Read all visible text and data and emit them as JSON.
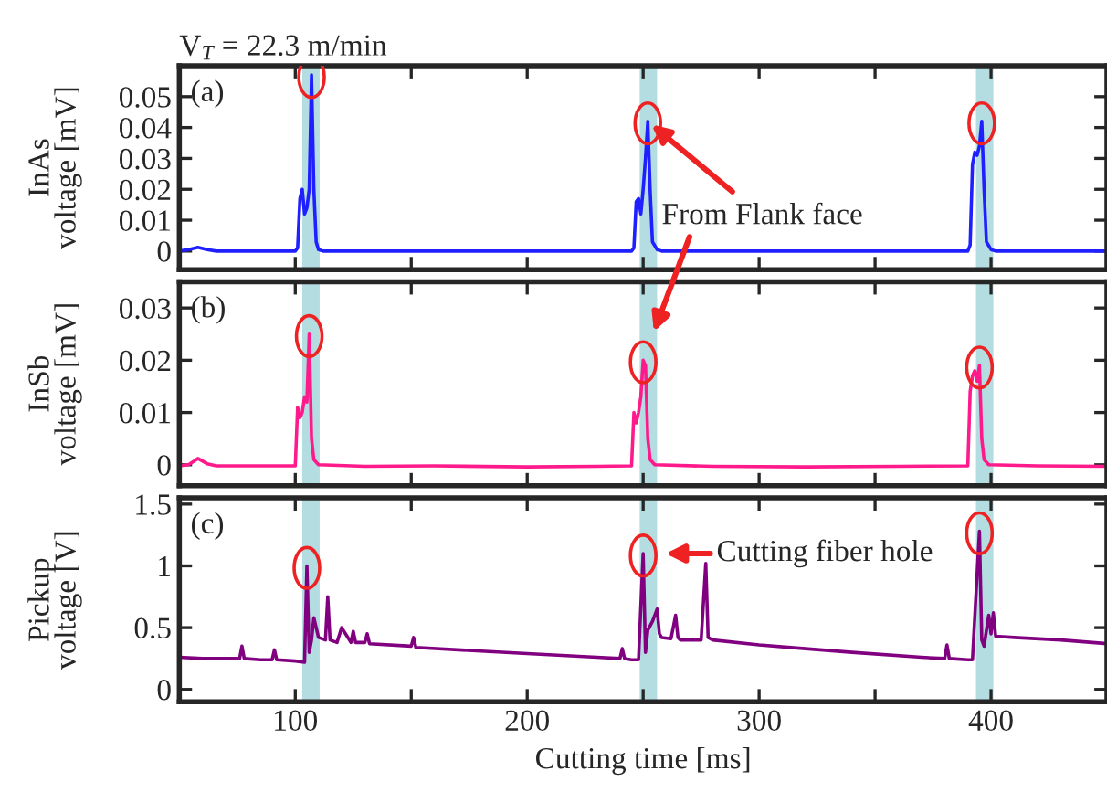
{
  "chart_data": [
    {
      "type": "line",
      "title": "V$_{T}$ = 22.3 m/min",
      "ylabel": "InAs\nvoltage [mV]",
      "annotations": [
        "(a)",
        {
          "text": "From Flank face",
          "x": 252,
          "y": 0.042
        }
      ],
      "xlim": [
        50,
        450
      ],
      "xticks": [
        {
          "value": 100,
          "label": null
        },
        {
          "value": 150,
          "label": null
        },
        {
          "value": 200,
          "label": null
        },
        {
          "value": 250,
          "label": null
        },
        {
          "value": 300,
          "label": null
        },
        {
          "value": 350,
          "label": null
        },
        {
          "value": 400,
          "label": null
        }
      ],
      "ylim": [
        -0.006,
        0.06
      ],
      "yticks": [
        0,
        0.01,
        0.02,
        0.03,
        0.04,
        0.05
      ],
      "tick_labels": "y",
      "grid": false,
      "legend": false,
      "line_style": "solid",
      "marker": "none",
      "bands": [
        {
          "axis": "x",
          "from": 103,
          "to": 110.5,
          "color": "#b4dde2"
        },
        {
          "axis": "x",
          "from": 248.5,
          "to": 256,
          "color": "#b4dde2"
        },
        {
          "axis": "x",
          "from": 393.5,
          "to": 401,
          "color": "#b4dde2"
        }
      ],
      "series": [
        {
          "color": "#1f1fff",
          "x": [
            50,
            54,
            58,
            62,
            66,
            80,
            100,
            101,
            102,
            103,
            104,
            105,
            106,
            107,
            108,
            109,
            110,
            112,
            150,
            200,
            245,
            246,
            247,
            248,
            249,
            250,
            251,
            252,
            253,
            254,
            256,
            258,
            300,
            350,
            390,
            391,
            392,
            393,
            394,
            395,
            396,
            397,
            398,
            400,
            402,
            450
          ],
          "values": [
            0,
            0.0005,
            0.0012,
            0.0005,
            0,
            0,
            0,
            0.001,
            0.017,
            0.02,
            0.012,
            0.014,
            0.02,
            0.057,
            0.02,
            0.003,
            0.0005,
            0,
            0,
            0,
            0,
            0.001,
            0.016,
            0.017,
            0.012,
            0.02,
            0.03,
            0.042,
            0.02,
            0.003,
            0.0005,
            0,
            0,
            0,
            0,
            0.002,
            0.028,
            0.032,
            0.031,
            0.034,
            0.042,
            0.02,
            0.003,
            0.0005,
            0,
            0
          ]
        }
      ]
    },
    {
      "type": "line",
      "ylabel": "InSb\nvoltage [mV]",
      "annotations": [
        "(b)"
      ],
      "xlim": [
        50,
        450
      ],
      "xticks": [
        {
          "value": 100,
          "label": null
        },
        {
          "value": 150,
          "label": null
        },
        {
          "value": 200,
          "label": null
        },
        {
          "value": 250,
          "label": null
        },
        {
          "value": 300,
          "label": null
        },
        {
          "value": 350,
          "label": null
        },
        {
          "value": 400,
          "label": null
        }
      ],
      "ylim": [
        -0.004,
        0.035
      ],
      "yticks": [
        0,
        0.01,
        0.02,
        0.03
      ],
      "tick_labels": "y",
      "grid": false,
      "legend": false,
      "line_style": "solid",
      "marker": "none",
      "bands": [
        {
          "axis": "x",
          "from": 103,
          "to": 110.5,
          "color": "#b4dde2"
        },
        {
          "axis": "x",
          "from": 248.5,
          "to": 256,
          "color": "#b4dde2"
        },
        {
          "axis": "x",
          "from": 393.5,
          "to": 401,
          "color": "#b4dde2"
        }
      ],
      "series": [
        {
          "color": "#ff1a8c",
          "x": [
            50,
            54,
            58,
            62,
            66,
            80,
            100,
            101,
            102,
            103,
            104,
            105,
            106,
            107,
            108,
            110,
            130,
            160,
            200,
            230,
            245,
            246,
            247,
            248,
            249,
            250,
            251,
            252,
            253,
            255,
            280,
            320,
            360,
            390,
            391,
            392,
            393,
            394,
            395,
            396,
            397,
            399,
            420,
            450
          ],
          "values": [
            -0.0002,
            0,
            0.0012,
            0.0002,
            -0.0002,
            -0.0002,
            -0.0002,
            0.011,
            0.009,
            0.01,
            0.013,
            0.012,
            0.025,
            0.005,
            0.001,
            0,
            -0.0003,
            -0.0002,
            -0.0004,
            -0.0003,
            -0.0002,
            0.01,
            0.008,
            0.01,
            0.013,
            0.02,
            0.019,
            0.005,
            0.001,
            0,
            -0.0003,
            -0.0004,
            -0.0003,
            -0.0002,
            0.014,
            0.017,
            0.018,
            0.016,
            0.019,
            0.005,
            0.001,
            0,
            -0.0002,
            -0.0003
          ]
        }
      ]
    },
    {
      "type": "line",
      "ylabel": "Pickup\nvoltage [V]",
      "xlabel": "Cutting time [ms]",
      "annotations": [
        "(c)",
        {
          "text": "Cutting fiber hole",
          "x": 251,
          "y": 1.1
        }
      ],
      "xlim": [
        50,
        450
      ],
      "xticks": [
        100,
        {
          "value": 150,
          "label": null
        },
        200,
        {
          "value": 250,
          "label": null
        },
        300,
        {
          "value": 350,
          "label": null
        },
        400
      ],
      "ylim": [
        -0.1,
        1.55
      ],
      "yticks": [
        0,
        0.5,
        1,
        1.5
      ],
      "grid": false,
      "legend": false,
      "line_style": "solid",
      "marker": "none",
      "bands": [
        {
          "axis": "x",
          "from": 103,
          "to": 110.5,
          "color": "#b4dde2"
        },
        {
          "axis": "x",
          "from": 248.5,
          "to": 256,
          "color": "#b4dde2"
        },
        {
          "axis": "x",
          "from": 393.5,
          "to": 401,
          "color": "#b4dde2"
        }
      ],
      "series": [
        {
          "color": "#800080",
          "x": [
            50,
            60,
            76,
            77,
            78,
            85,
            90,
            91,
            92,
            100,
            104,
            105,
            106,
            107,
            108,
            110,
            113,
            114,
            115,
            118,
            120,
            124,
            125,
            126,
            130,
            131,
            132,
            150,
            151,
            152,
            180,
            200,
            230,
            240,
            241,
            242,
            245,
            248,
            250,
            251,
            252,
            254,
            256,
            257,
            258,
            262,
            264,
            265,
            266,
            275,
            277,
            278,
            280,
            300,
            320,
            340,
            370,
            380,
            381,
            382,
            390,
            392,
            395,
            396,
            397,
            399,
            400,
            401,
            402,
            410,
            430,
            450
          ],
          "values": [
            0.26,
            0.25,
            0.25,
            0.35,
            0.25,
            0.24,
            0.24,
            0.32,
            0.24,
            0.23,
            0.22,
            1.0,
            0.3,
            0.4,
            0.58,
            0.42,
            0.4,
            0.75,
            0.4,
            0.38,
            0.5,
            0.38,
            0.47,
            0.38,
            0.38,
            0.45,
            0.37,
            0.35,
            0.42,
            0.34,
            0.31,
            0.29,
            0.26,
            0.25,
            0.33,
            0.25,
            0.24,
            0.24,
            1.1,
            0.3,
            0.48,
            0.55,
            0.65,
            0.45,
            0.42,
            0.41,
            0.6,
            0.42,
            0.4,
            0.4,
            1.02,
            0.42,
            0.4,
            0.36,
            0.33,
            0.3,
            0.26,
            0.25,
            0.36,
            0.25,
            0.24,
            0.24,
            1.28,
            0.4,
            0.35,
            0.6,
            0.45,
            0.62,
            0.43,
            0.42,
            0.4,
            0.37
          ]
        }
      ]
    }
  ]
}
